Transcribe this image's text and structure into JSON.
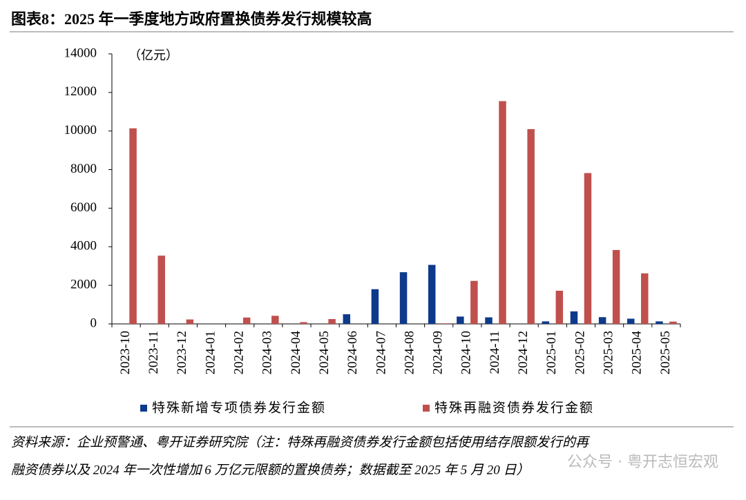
{
  "chart_data": {
    "type": "bar",
    "title": "图表8：2025 年一季度地方政府置换债券发行规模较高",
    "unit_label": "（亿元）",
    "categories": [
      "2023-10",
      "2023-11",
      "2023-12",
      "2024-01",
      "2024-02",
      "2024-03",
      "2024-04",
      "2024-05",
      "2024-06",
      "2024-07",
      "2024-08",
      "2024-09",
      "2024-10",
      "2024-11",
      "2024-12",
      "2025-01",
      "2025-02",
      "2025-03",
      "2025-04",
      "2025-05"
    ],
    "series": [
      {
        "name": "特殊新增专项债券发行金额",
        "color": "#0e3a8c",
        "values": [
          0,
          0,
          0,
          0,
          0,
          0,
          0,
          0,
          500,
          1800,
          2680,
          3060,
          380,
          340,
          0,
          130,
          650,
          350,
          270,
          130
        ]
      },
      {
        "name": "特殊再融资债券发行金额",
        "color": "#c0504d",
        "values": [
          10140,
          3540,
          230,
          0,
          330,
          420,
          90,
          250,
          0,
          0,
          0,
          30,
          2230,
          11550,
          10100,
          1720,
          7820,
          3830,
          2620,
          120
        ]
      }
    ],
    "ylim": [
      0,
      14000
    ],
    "yticks": [
      0,
      2000,
      4000,
      6000,
      8000,
      10000,
      12000,
      14000
    ],
    "source_lines": [
      "资料来源：企业预警通、粤开证券研究院（注：特殊再融资债券发行金额包括使用结存限额发行的再",
      "融资债券以及 2024 年一次性增加 6 万亿元限额的置换债券；数据截至 2025 年 5 月 20 日）"
    ],
    "watermark": "公众号 · 粤开志恒宏观"
  }
}
